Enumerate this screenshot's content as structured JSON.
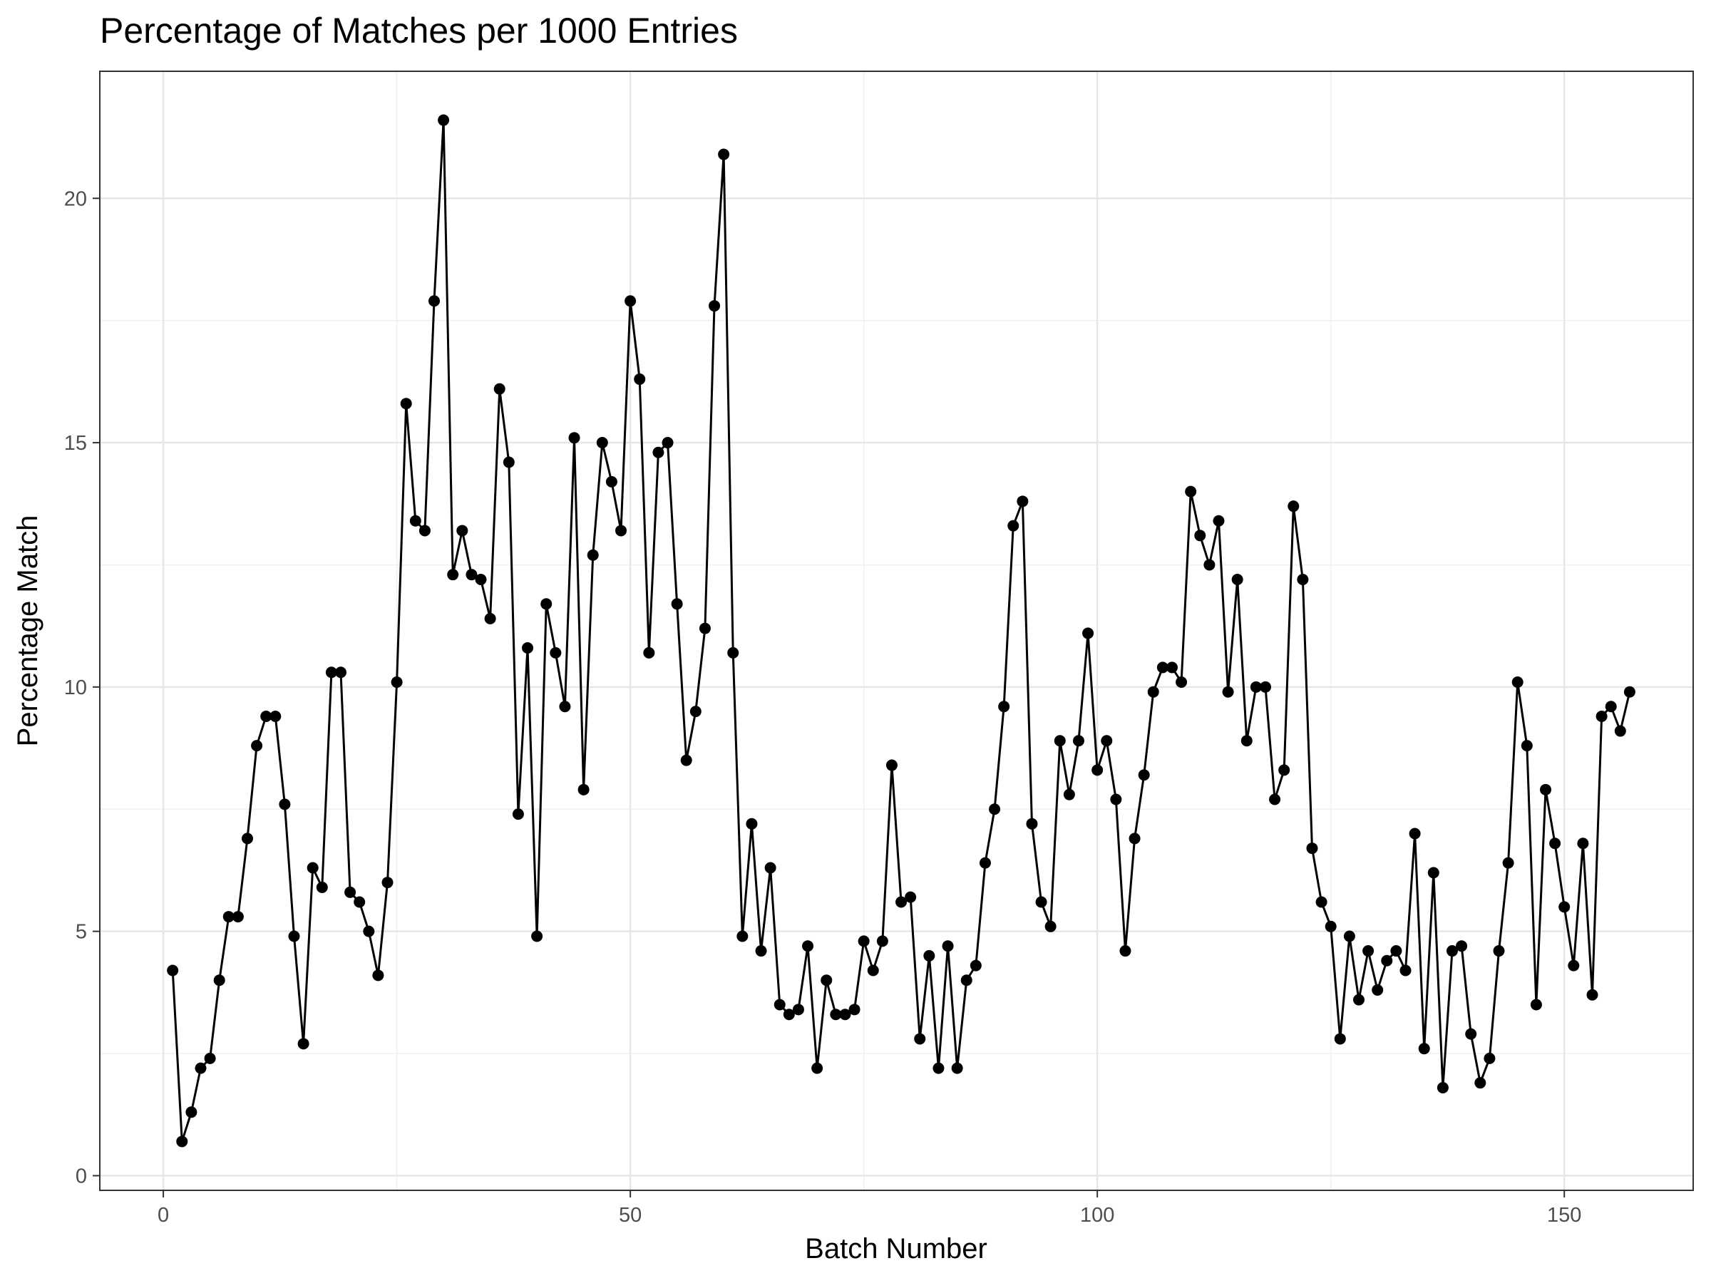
{
  "chart_data": {
    "type": "line",
    "title": "Percentage of Matches per 1000 Entries",
    "xlabel": "Batch Number",
    "ylabel": "Percentage Match",
    "xlim": [
      -6.8,
      163.8
    ],
    "ylim": [
      -0.3,
      22.6
    ],
    "xticks": [
      0,
      50,
      100,
      150
    ],
    "yticks": [
      0,
      5,
      10,
      15,
      20
    ],
    "x_minor_ticks": [
      25,
      75,
      125
    ],
    "y_minor_ticks": [
      2.5,
      7.5,
      12.5,
      17.5
    ],
    "grid": true,
    "legend": "none",
    "line_color": "#000000",
    "point_color": "#000000",
    "series": [
      {
        "x": [
          1,
          2,
          3,
          4,
          5,
          6,
          7,
          8,
          9,
          10,
          11,
          12,
          13,
          14,
          15,
          16,
          17,
          18,
          19,
          20,
          21,
          22,
          23,
          24,
          25,
          26,
          27,
          28,
          29,
          30,
          31,
          32,
          33,
          34,
          35,
          36,
          37,
          38,
          39,
          40,
          41,
          42,
          43,
          44,
          45,
          46,
          47,
          48,
          49,
          50,
          51,
          52,
          53,
          54,
          55,
          56,
          57,
          58,
          59,
          60,
          61,
          62,
          63,
          64,
          65,
          66,
          67,
          68,
          69,
          70,
          71,
          72,
          73,
          74,
          75,
          76,
          77,
          78,
          79,
          80,
          81,
          82,
          83,
          84,
          85,
          86,
          87,
          88,
          89,
          90,
          91,
          92,
          93,
          94,
          95,
          96,
          97,
          98,
          99,
          100,
          101,
          102,
          103,
          104,
          105,
          106,
          107,
          108,
          109,
          110,
          111,
          112,
          113,
          114,
          115,
          116,
          117,
          118,
          119,
          120,
          121,
          122,
          123,
          124,
          125,
          126,
          127,
          128,
          129,
          130,
          131,
          132,
          133,
          134,
          135,
          136,
          137,
          138,
          139,
          140,
          141,
          142,
          143,
          144,
          145,
          146,
          147,
          148,
          149,
          150,
          151,
          152,
          153,
          154,
          155,
          156,
          157
        ],
        "values": [
          4.2,
          0.7,
          1.3,
          2.2,
          2.4,
          4.0,
          5.3,
          5.3,
          6.9,
          8.8,
          9.4,
          9.4,
          7.6,
          4.9,
          2.7,
          6.3,
          5.9,
          10.3,
          10.3,
          5.8,
          5.6,
          5.0,
          4.1,
          6.0,
          10.1,
          15.8,
          13.4,
          13.2,
          17.9,
          21.6,
          12.3,
          13.2,
          12.3,
          12.2,
          11.4,
          16.1,
          14.6,
          7.4,
          10.8,
          4.9,
          11.7,
          10.7,
          9.6,
          15.1,
          7.9,
          12.7,
          15.0,
          14.2,
          13.2,
          17.9,
          16.3,
          10.7,
          14.8,
          15.0,
          11.7,
          8.5,
          9.5,
          11.2,
          17.8,
          20.9,
          10.7,
          4.9,
          7.2,
          4.6,
          6.3,
          3.5,
          3.3,
          3.4,
          4.7,
          2.2,
          4.0,
          3.3,
          3.3,
          3.4,
          4.8,
          4.2,
          4.8,
          8.4,
          5.6,
          5.7,
          2.8,
          4.5,
          2.2,
          4.7,
          2.2,
          4.0,
          4.3,
          6.4,
          7.5,
          9.6,
          13.3,
          13.8,
          7.2,
          5.6,
          5.1,
          8.9,
          7.8,
          8.9,
          11.1,
          8.3,
          8.9,
          7.7,
          4.6,
          6.9,
          8.2,
          9.9,
          10.4,
          10.4,
          10.1,
          14.0,
          13.1,
          12.5,
          13.4,
          9.9,
          12.2,
          8.9,
          10.0,
          10.0,
          7.7,
          8.3,
          13.7,
          12.2,
          6.7,
          5.6,
          5.1,
          2.8,
          4.9,
          3.6,
          4.6,
          3.8,
          4.4,
          4.6,
          4.2,
          7.0,
          2.6,
          6.2,
          1.8,
          4.6,
          4.7,
          2.9,
          1.9,
          2.4,
          4.6,
          6.4,
          10.1,
          8.8,
          3.5,
          7.9,
          6.8,
          5.5,
          4.3,
          6.8,
          3.7,
          9.4,
          9.6,
          9.1,
          9.9
        ]
      }
    ]
  }
}
